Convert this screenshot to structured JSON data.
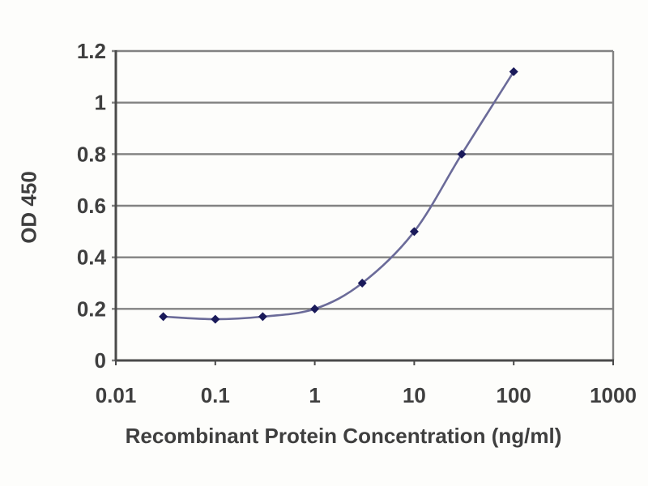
{
  "chart_data": {
    "type": "line",
    "title": "",
    "xlabel": "Recombinant Protein Concentration (ng/ml)",
    "ylabel": "OD 450",
    "x_scale": "log",
    "xlim": [
      0.01,
      1000
    ],
    "ylim": [
      0,
      1.2
    ],
    "xticks": {
      "values": [
        0.01,
        0.1,
        1,
        10,
        100,
        1000
      ],
      "labels": [
        "0.01",
        "0.1",
        "1",
        "10",
        "100",
        "1000"
      ]
    },
    "yticks": {
      "values": [
        0,
        0.2,
        0.4,
        0.6,
        0.8,
        1,
        1.2
      ],
      "labels": [
        "0",
        "0.2",
        "0.4",
        "0.6",
        "0.8",
        "1",
        "1.2"
      ]
    },
    "grid": "horizontal",
    "legend": "none",
    "series": [
      {
        "name": "OD 450",
        "x": [
          0.03,
          0.1,
          0.3,
          1,
          3,
          10,
          30,
          100
        ],
        "y": [
          0.17,
          0.16,
          0.17,
          0.2,
          0.3,
          0.5,
          0.8,
          1.12
        ],
        "marker": "diamond",
        "line_color": "#6b6b99",
        "marker_color": "#1a1a5a"
      }
    ],
    "colors": {
      "grid": "#828282",
      "axis": "#4a4a4a",
      "plot_border": "#828282",
      "text": "#3f3f3f",
      "background": "#fdfdfb"
    }
  }
}
